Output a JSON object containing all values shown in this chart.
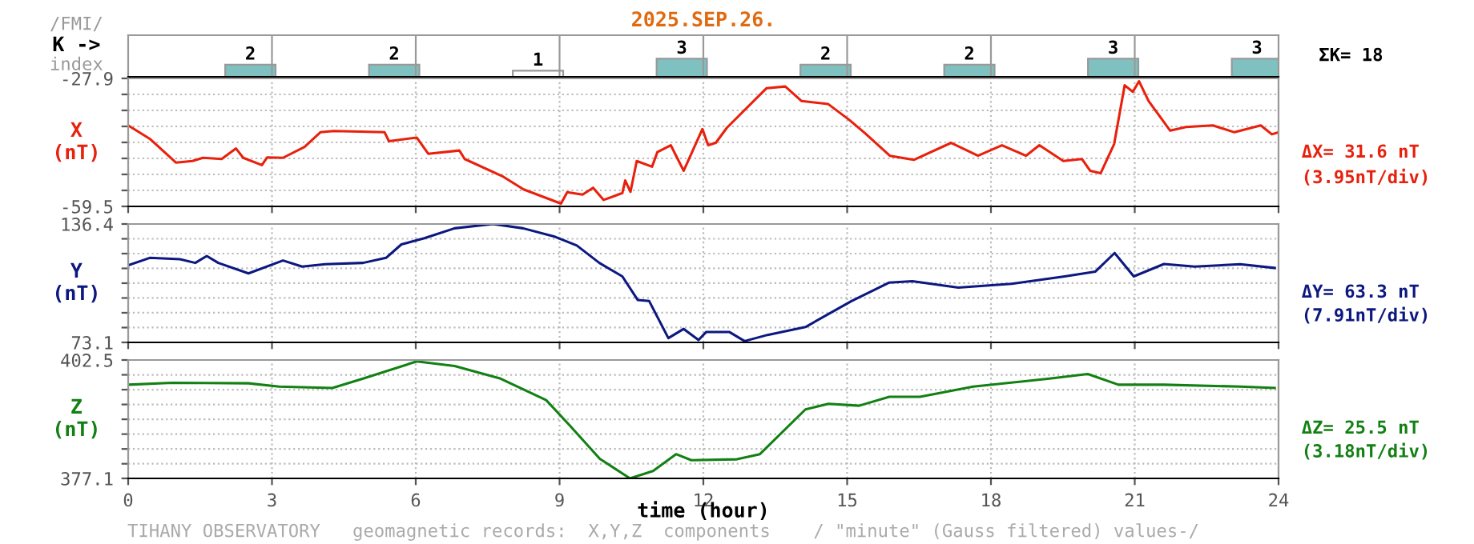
{
  "chart_data": [
    {
      "type": "bar",
      "title": "2025.SEP.26.",
      "ylabel": "K ->",
      "categories": [
        null,
        null,
        null,
        null,
        null,
        null,
        null,
        null
      ],
      "values": [
        2,
        2,
        1,
        3,
        2,
        2,
        3,
        3
      ],
      "colors": [
        "#7fc1c1",
        "#7fc1c1",
        "#ffffff",
        "#7fc1c1",
        "#7fc1c1",
        "#7fc1c1",
        "#7fc1c1",
        "#7fc1c1"
      ],
      "data_labels": true,
      "tick_labels": false,
      "annotations": [
        "/FMI/",
        "index",
        "ΣK= 18"
      ]
    },
    {
      "type": "line",
      "ylabel": "X\n(nT)",
      "xlim": [
        0,
        24
      ],
      "xticks": [
        0,
        3,
        6,
        9,
        12,
        15,
        18,
        21,
        24
      ],
      "ylim": [
        -59.5,
        -27.9
      ],
      "yticks": [
        -59.5,
        {
          "value": -55.55,
          "label": null
        },
        {
          "value": -51.6,
          "label": null
        },
        {
          "value": -47.65,
          "label": null
        },
        {
          "value": -43.7,
          "label": null
        },
        {
          "value": -39.75,
          "label": null
        },
        {
          "value": -35.8,
          "label": null
        },
        {
          "value": -31.85,
          "label": null
        },
        -27.9
      ],
      "grid": true,
      "tick_labels": "y",
      "annotations": [
        "ΔX= 31.6 nT",
        "(3.95nT/div)"
      ],
      "series": [
        {
          "color": "#e8200c",
          "x": [
            0,
            0.45,
            1.0,
            1.34,
            1.56,
            1.95,
            2.25,
            2.4,
            2.79,
            2.9,
            3.23,
            3.68,
            4.01,
            4.29,
            5.35,
            5.44,
            6.02,
            6.26,
            6.91,
            7.02,
            7.8,
            8.25,
            9.03,
            9.16,
            9.48,
            9.7,
            9.92,
            10.31,
            10.37,
            10.48,
            10.61,
            10.93,
            11.04,
            11.32,
            11.59,
            11.98,
            12.1,
            12.26,
            12.49,
            12.82,
            13.32,
            13.71,
            14.05,
            14.6,
            15.05,
            15.38,
            15.89,
            16.39,
            17.17,
            17.73,
            18.23,
            18.73,
            19.01,
            19.51,
            19.9,
            20.07,
            20.29,
            20.57,
            20.79,
            20.96,
            21.09,
            21.29,
            21.74,
            22.07,
            22.63,
            23.08,
            23.63,
            23.86,
            24
          ],
          "values": [
            -39.5,
            -42.8,
            -48.7,
            -48.3,
            -47.5,
            -47.8,
            -45.2,
            -47.5,
            -49.3,
            -47.4,
            -47.5,
            -44.8,
            -41.2,
            -40.9,
            -41.2,
            -43.4,
            -42.5,
            -46.5,
            -45.7,
            -47.8,
            -52.0,
            -55.3,
            -58.8,
            -56.0,
            -56.6,
            -54.9,
            -57.9,
            -56.2,
            -53.1,
            -55.9,
            -48.3,
            -49.7,
            -46.1,
            -44.4,
            -50.7,
            -40.4,
            -44.4,
            -43.8,
            -40.1,
            -36.2,
            -30.3,
            -29.9,
            -33.5,
            -34.2,
            -38.2,
            -41.5,
            -47.0,
            -48.0,
            -43.8,
            -47.0,
            -44.4,
            -47.0,
            -44.4,
            -48.3,
            -47.8,
            -50.7,
            -51.3,
            -44.1,
            -29.6,
            -31.2,
            -28.6,
            -33.5,
            -40.8,
            -39.9,
            -39.5,
            -41.2,
            -39.5,
            -41.7,
            -41.2
          ]
        }
      ]
    },
    {
      "type": "line",
      "ylabel": "Y\n(nT)",
      "xlim": [
        0,
        24
      ],
      "xticks": [
        0,
        3,
        6,
        9,
        12,
        15,
        18,
        21,
        24
      ],
      "ylim": [
        73.1,
        136.4
      ],
      "yticks": [
        73.1,
        {
          "value": 81.03,
          "label": null
        },
        {
          "value": 88.94,
          "label": null
        },
        {
          "value": 96.85,
          "label": null
        },
        {
          "value": 104.76,
          "label": null
        },
        {
          "value": 112.67,
          "label": null
        },
        {
          "value": 120.58,
          "label": null
        },
        {
          "value": 128.49,
          "label": null
        },
        136.4
      ],
      "grid": true,
      "tick_labels": "y",
      "annotations": [
        "ΔY= 63.3 nT",
        "(7.91nT/div)"
      ],
      "series": [
        {
          "color": "#0c1880",
          "x": [
            0,
            0.45,
            1.08,
            1.4,
            1.64,
            1.88,
            2.51,
            3.23,
            3.63,
            4.11,
            4.9,
            5.38,
            5.7,
            6.18,
            6.81,
            7.61,
            8.24,
            8.88,
            9.36,
            9.83,
            10.31,
            10.63,
            10.87,
            11.27,
            11.59,
            11.9,
            12.06,
            12.54,
            12.86,
            13.34,
            14.13,
            15.09,
            15.88,
            16.36,
            17.32,
            18.43,
            19.54,
            20.18,
            20.58,
            20.98,
            21.61,
            22.25,
            23.2,
            23.92
          ],
          "values": [
            114.3,
            118.3,
            117.6,
            115.6,
            119.3,
            115.6,
            110.0,
            116.9,
            113.6,
            114.9,
            115.6,
            118.3,
            125.5,
            128.8,
            134.1,
            136.4,
            134.1,
            129.8,
            124.9,
            115.6,
            108.4,
            95.8,
            95.2,
            75.4,
            80.3,
            74.4,
            78.7,
            78.7,
            73.8,
            77.1,
            81.3,
            95.2,
            105.1,
            105.8,
            102.4,
            104.4,
            108.4,
            111.0,
            120.9,
            108.4,
            115.0,
            113.6,
            114.9,
            112.9
          ]
        }
      ]
    },
    {
      "type": "line",
      "ylabel": "Z\n(nT)",
      "xlabel": "time (hour)",
      "xlim": [
        0,
        24
      ],
      "xticks": [
        0,
        3,
        6,
        9,
        12,
        15,
        18,
        21,
        24
      ],
      "ylim": [
        377.1,
        402.5
      ],
      "yticks": [
        377.1,
        {
          "value": 380.24,
          "label": null
        },
        {
          "value": 383.42,
          "label": null
        },
        {
          "value": 386.6,
          "label": null
        },
        {
          "value": 389.78,
          "label": null
        },
        {
          "value": 392.96,
          "label": null
        },
        {
          "value": 396.14,
          "label": null
        },
        {
          "value": 399.32,
          "label": null
        },
        402.5
      ],
      "grid": true,
      "annotations": [
        "ΔZ= 25.5 nT",
        "(3.18nT/div)",
        "TIHANY OBSERVATORY   geomagnetic records:  X,Y,Z  components    / \"minute\" (Gauss filtered) values-/"
      ],
      "series": [
        {
          "color": "#138013",
          "x": [
            0,
            0.92,
            2.51,
            3.15,
            4.26,
            4.9,
            6.02,
            6.81,
            7.77,
            8.72,
            9.2,
            9.84,
            10.47,
            10.95,
            11.43,
            11.75,
            12.7,
            13.18,
            14.13,
            14.61,
            15.25,
            15.88,
            16.52,
            17.63,
            19.22,
            20.02,
            20.66,
            21.61,
            23.2,
            23.92
          ],
          "values": [
            397.2,
            397.6,
            397.5,
            396.8,
            396.5,
            398.5,
            402.2,
            401.2,
            398.5,
            393.9,
            388.6,
            381.3,
            377.1,
            378.7,
            382.3,
            381.0,
            381.2,
            382.3,
            391.9,
            393.1,
            392.7,
            394.6,
            394.6,
            396.8,
            398.5,
            399.5,
            397.2,
            397.2,
            396.8,
            396.5
          ]
        }
      ]
    }
  ]
}
